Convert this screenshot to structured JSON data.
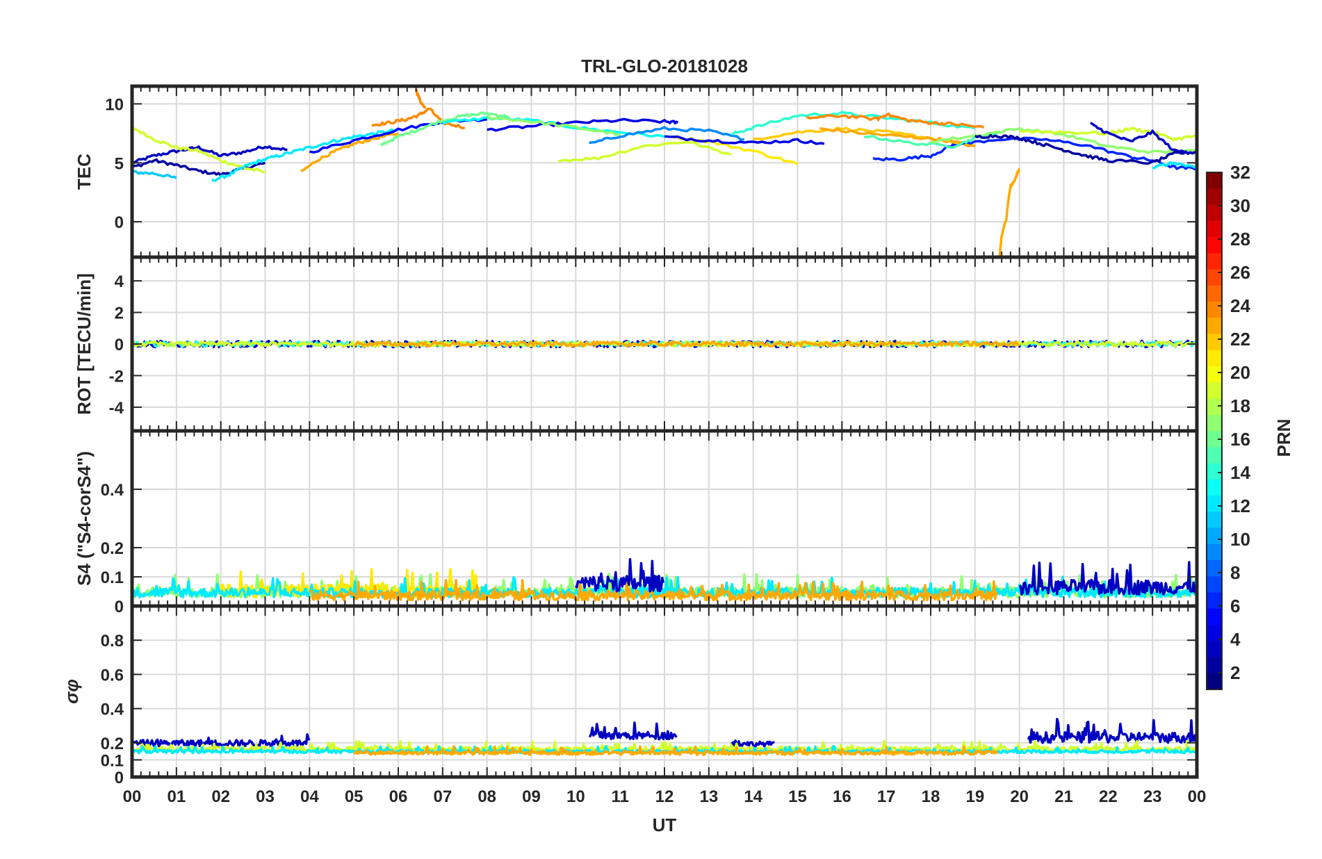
{
  "chart_data": {
    "type": "line",
    "title": "TRL-GLO-20181028",
    "xlabel": "UT",
    "x_range": [
      0,
      24
    ],
    "x_tick_labels": [
      "00",
      "01",
      "02",
      "03",
      "04",
      "05",
      "06",
      "07",
      "08",
      "09",
      "10",
      "11",
      "12",
      "13",
      "14",
      "15",
      "16",
      "17",
      "18",
      "19",
      "20",
      "21",
      "22",
      "23",
      "00"
    ],
    "grid": true,
    "colorbar": {
      "label": "PRN",
      "range": [
        1,
        32
      ],
      "tick_labels": [
        "2",
        "4",
        "6",
        "8",
        "10",
        "12",
        "14",
        "16",
        "18",
        "20",
        "22",
        "24",
        "26",
        "28",
        "30",
        "32"
      ],
      "colormap": "jet"
    },
    "panels": [
      {
        "id": "tec",
        "ylabel": "TEC",
        "ylim": [
          -3,
          11.5
        ],
        "yticks": [
          0,
          5,
          10
        ],
        "ytick_labels": [
          "0",
          "5",
          "10"
        ],
        "series": [
          {
            "prn": 3,
            "x": [
              0,
              0.5,
              1,
              1.5,
              2,
              2.5,
              3,
              3.5
            ],
            "y": [
              5.0,
              5.6,
              6.0,
              6.3,
              5.6,
              5.9,
              6.4,
              6.1
            ]
          },
          {
            "prn": 2,
            "x": [
              0,
              0.5,
              1,
              1.5,
              2,
              2.5,
              3
            ],
            "y": [
              4.6,
              5.2,
              4.8,
              4.3,
              4.0,
              4.5,
              5.0
            ]
          },
          {
            "prn": 11,
            "x": [
              0,
              0.5,
              1
            ],
            "y": [
              4.2,
              4.1,
              3.7
            ]
          },
          {
            "prn": 19,
            "x": [
              0,
              0.5,
              1,
              1.5,
              2,
              2.5,
              3
            ],
            "y": [
              8.0,
              7.0,
              6.3,
              6.0,
              5.2,
              4.6,
              4.2
            ]
          },
          {
            "prn": 12,
            "x": [
              1.8,
              2.2,
              2.6,
              3,
              3.5,
              4,
              4.5,
              5,
              5.5,
              6
            ],
            "y": [
              3.5,
              4.0,
              4.8,
              5.3,
              5.8,
              6.3,
              6.8,
              7.2,
              7.5,
              7.8
            ]
          },
          {
            "prn": 23,
            "x": [
              3.8,
              4.2,
              4.6,
              5,
              5.5,
              6
            ],
            "y": [
              4.2,
              5.3,
              6.0,
              6.6,
              7.1,
              7.5
            ]
          },
          {
            "prn": 5,
            "x": [
              4,
              5,
              6,
              7,
              8
            ],
            "y": [
              5.9,
              6.9,
              7.8,
              8.5,
              8.7
            ]
          },
          {
            "prn": 24,
            "x": [
              5.4,
              5.8,
              6.2,
              6.5,
              6.7,
              7.0,
              7.5
            ],
            "y": [
              8.2,
              8.4,
              8.7,
              9.1,
              9.6,
              8.4,
              8.0
            ]
          },
          {
            "prn": 24,
            "x": [
              6.4,
              6.5,
              6.6
            ],
            "y": [
              11.2,
              10.2,
              9.6
            ]
          },
          {
            "prn": 16,
            "x": [
              5.6,
              6,
              6.5,
              7,
              7.5,
              8,
              8.5
            ],
            "y": [
              6.5,
              7.2,
              7.9,
              8.6,
              9.0,
              9.2,
              8.9
            ]
          },
          {
            "prn": 13,
            "x": [
              7,
              8,
              9,
              10,
              11,
              12
            ],
            "y": [
              8.4,
              8.8,
              8.6,
              8.0,
              7.6,
              7.2
            ]
          },
          {
            "prn": 4,
            "x": [
              8,
              9,
              10,
              11,
              12,
              12.3
            ],
            "y": [
              7.8,
              8.1,
              8.4,
              8.6,
              8.5,
              8.4
            ]
          },
          {
            "prn": 17,
            "x": [
              8,
              9,
              10,
              11
            ],
            "y": [
              8.9,
              8.5,
              8.0,
              7.4
            ]
          },
          {
            "prn": 9,
            "x": [
              10.3,
              11,
              12,
              13,
              13.8
            ],
            "y": [
              6.6,
              7.3,
              7.9,
              7.7,
              7.0
            ]
          },
          {
            "prn": 19,
            "x": [
              9.6,
              10.5,
              11.5,
              12.5,
              13.5
            ],
            "y": [
              5.2,
              5.4,
              6.4,
              6.8,
              5.7
            ]
          },
          {
            "prn": 21,
            "x": [
              12.2,
              13,
              14,
              15
            ],
            "y": [
              7.2,
              6.8,
              6.0,
              4.9
            ]
          },
          {
            "prn": 4,
            "x": [
              12,
              13,
              14,
              15,
              15.6
            ],
            "y": [
              7.2,
              6.9,
              6.7,
              6.9,
              6.6
            ]
          },
          {
            "prn": 14,
            "x": [
              13.5,
              14,
              15,
              16,
              17,
              18,
              19
            ],
            "y": [
              7.4,
              8.0,
              9.0,
              9.2,
              8.8,
              8.4,
              7.9
            ]
          },
          {
            "prn": 22,
            "x": [
              14,
              15,
              16,
              17,
              18,
              19
            ],
            "y": [
              7.0,
              7.6,
              7.9,
              7.6,
              7.1,
              6.4
            ]
          },
          {
            "prn": 24,
            "x": [
              15.2,
              16,
              16.8,
              17,
              17.5,
              18,
              18.5,
              19.2
            ],
            "y": [
              8.8,
              9.0,
              8.7,
              9.1,
              8.6,
              8.4,
              8.3,
              8.0
            ]
          },
          {
            "prn": 23,
            "x": [
              15.5,
              16.5,
              17.5,
              18.2,
              19
            ],
            "y": [
              7.9,
              7.5,
              7.2,
              7.0,
              6.4
            ]
          },
          {
            "prn": 6,
            "x": [
              16.7,
              17.3,
              18,
              18.5,
              19.5,
              20.5,
              21.5,
              22.5,
              23,
              23.5,
              24
            ],
            "y": [
              5.3,
              5.3,
              5.6,
              6.5,
              7.0,
              7.0,
              6.5,
              5.5,
              5.2,
              4.6,
              4.5
            ]
          },
          {
            "prn": 15,
            "x": [
              16.5,
              17.5,
              18.5,
              19,
              19.5
            ],
            "y": [
              7.3,
              6.7,
              6.4,
              7.1,
              7.5
            ]
          },
          {
            "prn": 17,
            "x": [
              18,
              19,
              20,
              21,
              22,
              23,
              24
            ],
            "y": [
              6.8,
              7.3,
              7.9,
              7.4,
              6.4,
              5.9,
              6.0
            ]
          },
          {
            "prn": 2,
            "x": [
              19,
              19.5,
              20,
              20.5,
              21,
              21.5,
              22,
              23,
              23.5,
              24
            ],
            "y": [
              7.2,
              7.3,
              7.1,
              6.6,
              6.1,
              5.6,
              5.2,
              5.0,
              5.8,
              5.9
            ]
          },
          {
            "prn": 19,
            "x": [
              20,
              21,
              22,
              22.5,
              23,
              23.5,
              24
            ],
            "y": [
              7.7,
              7.6,
              7.5,
              7.9,
              7.6,
              7.0,
              7.3
            ]
          },
          {
            "prn": 3,
            "x": [
              21.6,
              22,
              22.5,
              23,
              23.5,
              24
            ],
            "y": [
              8.3,
              7.5,
              6.8,
              7.6,
              6.0,
              5.9
            ]
          },
          {
            "prn": 12,
            "x": [
              23,
              23.5,
              24
            ],
            "y": [
              4.6,
              5.0,
              4.5
            ]
          },
          {
            "prn": 23,
            "x": [
              19.55,
              19.6,
              19.7,
              19.75,
              19.8,
              19.9,
              20.0
            ],
            "y": [
              -3,
              -1.2,
              0.2,
              1.8,
              3.0,
              3.6,
              4.5
            ]
          }
        ]
      },
      {
        "id": "rot",
        "ylabel": "ROT [TECU/min]",
        "ylim": [
          -5.5,
          5.5
        ],
        "yticks": [
          -4,
          -2,
          0,
          2,
          4
        ],
        "ytick_labels": [
          "-4",
          "-2",
          "0",
          "2",
          "4"
        ],
        "series": [
          {
            "prn": 3,
            "x_range": [
              0,
              24
            ],
            "center": 0.0,
            "amplitude": 0.2
          },
          {
            "prn": 14,
            "x_range": [
              0,
              24
            ],
            "center": 0.0,
            "amplitude": 0.15
          },
          {
            "prn": 19,
            "x_range": [
              0,
              24
            ],
            "center": 0.0,
            "amplitude": 0.15
          },
          {
            "prn": 23,
            "x_range": [
              5,
              20
            ],
            "center": 0.0,
            "amplitude": 0.15
          }
        ]
      },
      {
        "id": "s4",
        "ylabel": "S4 (\"S4-corS4\")",
        "ylim": [
          0,
          0.6
        ],
        "yticks": [
          0,
          0.1,
          0.2,
          0.4
        ],
        "ytick_labels": [
          "0",
          "0.1",
          "0.2",
          "0.4"
        ],
        "series": [
          {
            "prn": 17,
            "x_range": [
              0,
              24
            ],
            "base": 0.03,
            "amplitude": 0.08
          },
          {
            "prn": 21,
            "x_range": [
              2,
              8
            ],
            "base": 0.03,
            "amplitude": 0.1
          },
          {
            "prn": 12,
            "x_range": [
              0,
              24
            ],
            "base": 0.03,
            "amplitude": 0.07
          },
          {
            "prn": 23,
            "x_range": [
              4,
              19.5
            ],
            "base": 0.02,
            "amplitude": 0.07
          },
          {
            "prn": 3,
            "x_range": [
              10,
              12
            ],
            "base": 0.05,
            "amplitude": 0.12
          },
          {
            "prn": 3,
            "x_range": [
              20,
              24
            ],
            "base": 0.04,
            "amplitude": 0.11
          }
        ]
      },
      {
        "id": "sigma_phi",
        "ylabel": "σφ",
        "ylim": [
          0,
          1
        ],
        "yticks": [
          0,
          0.1,
          0.2,
          0.4,
          0.6,
          0.8
        ],
        "ytick_labels": [
          "0",
          "0.1",
          "0.2",
          "0.4",
          "0.6",
          "0.8"
        ],
        "series": [
          {
            "prn": 3,
            "x_range": [
              0,
              4
            ],
            "base": 0.18,
            "amplitude": 0.08
          },
          {
            "prn": 3,
            "x_range": [
              10.3,
              12.3
            ],
            "base": 0.22,
            "amplitude": 0.1
          },
          {
            "prn": 3,
            "x_range": [
              13.5,
              14.5
            ],
            "base": 0.18,
            "amplitude": 0.06
          },
          {
            "prn": 3,
            "x_range": [
              20.2,
              24
            ],
            "base": 0.2,
            "amplitude": 0.14
          },
          {
            "prn": 19,
            "x_range": [
              0,
              24
            ],
            "base": 0.15,
            "amplitude": 0.06
          },
          {
            "prn": 12,
            "x_range": [
              0,
              24
            ],
            "base": 0.14,
            "amplitude": 0.04
          },
          {
            "prn": 23,
            "x_range": [
              5,
              19.5
            ],
            "base": 0.13,
            "amplitude": 0.05
          }
        ]
      }
    ]
  }
}
